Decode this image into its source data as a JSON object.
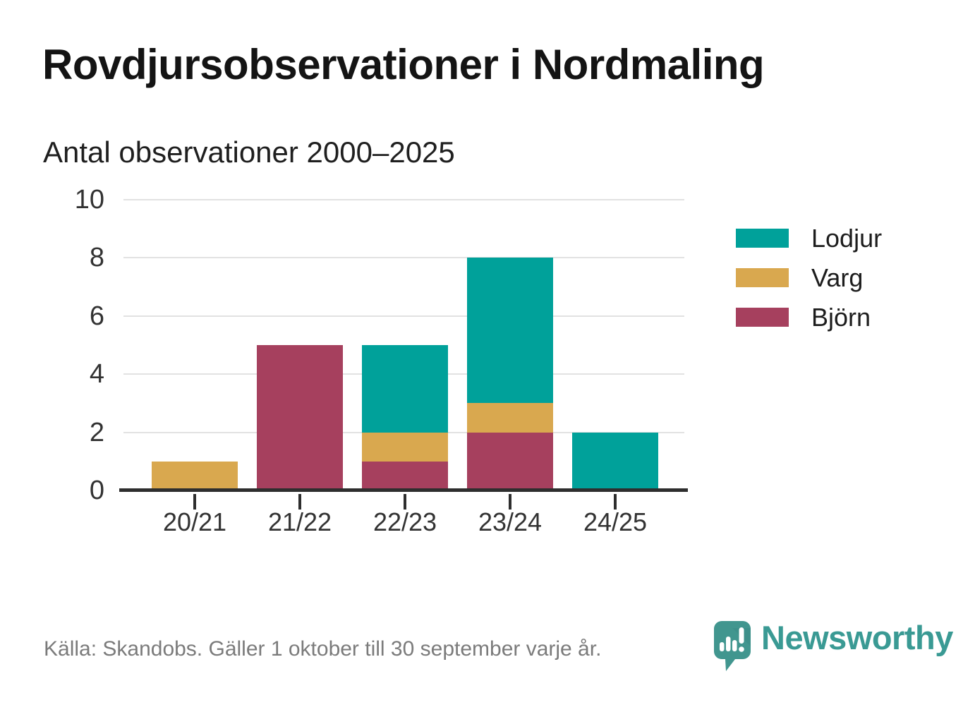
{
  "header": {
    "title": "Rovdjursobservationer i Nordmaling",
    "subtitle": "Antal observationer 2000–2025"
  },
  "chart_data": {
    "type": "bar",
    "stacked": true,
    "title": "Rovdjursobservationer i Nordmaling",
    "subtitle": "Antal observationer 2000–2025",
    "xlabel": "",
    "ylabel": "",
    "categories": [
      "20/21",
      "21/22",
      "22/23",
      "23/24",
      "24/25"
    ],
    "series": [
      {
        "name": "Björn",
        "color": "#a6405e",
        "values": [
          0,
          5,
          1,
          2,
          0
        ]
      },
      {
        "name": "Varg",
        "color": "#d9a84f",
        "values": [
          1,
          0,
          1,
          1,
          0
        ]
      },
      {
        "name": "Lodjur",
        "color": "#00a19a",
        "values": [
          0,
          0,
          3,
          5,
          2
        ]
      }
    ],
    "totals": [
      1,
      5,
      5,
      8,
      2
    ],
    "ylim": [
      0,
      10
    ],
    "yticks": [
      0,
      2,
      4,
      6,
      8,
      10
    ],
    "grid": true,
    "legend": {
      "position": "right",
      "items": [
        {
          "label": "Lodjur",
          "color": "#00a19a"
        },
        {
          "label": "Varg",
          "color": "#d9a84f"
        },
        {
          "label": "Björn",
          "color": "#a6405e"
        }
      ]
    }
  },
  "footer": {
    "source": "Källa: Skandobs. Gäller 1 oktober till 30 september varje år.",
    "logo_text": "Newsworthy",
    "logo_color": "#41968f"
  }
}
